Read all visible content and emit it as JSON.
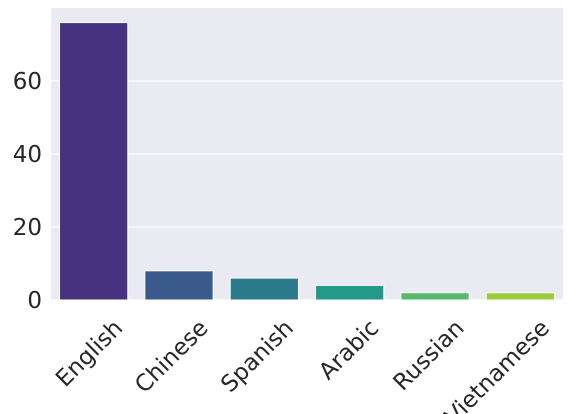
{
  "chart_data": {
    "type": "bar",
    "categories": [
      "English",
      "Chinese",
      "Spanish",
      "Arabic",
      "Russian",
      "Vietnamese"
    ],
    "values": [
      76,
      8,
      6,
      4,
      2,
      2
    ],
    "colors": [
      "#46327e",
      "#3b5a8c",
      "#2c7a8c",
      "#23998a",
      "#58b96a",
      "#9dcb3c"
    ],
    "title": "",
    "xlabel": "",
    "ylabel": "",
    "ylim": [
      0,
      80
    ],
    "yticks": [
      0,
      20,
      40,
      60
    ],
    "grid": true,
    "background": "#eaeaf2",
    "grid_color": "#ffffff"
  }
}
